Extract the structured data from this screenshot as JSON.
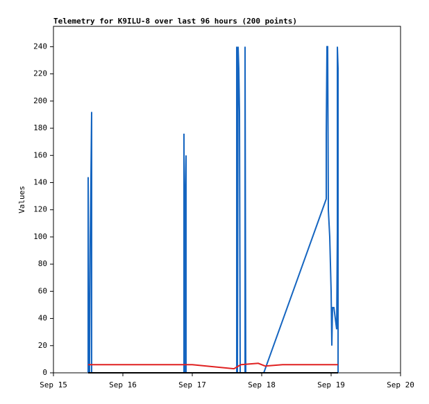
{
  "chart_data": {
    "type": "line",
    "title": "Telemetry for K9ILU-8 over last 96 hours (200 points)",
    "y_label": "Values",
    "xlim": [
      15,
      20
    ],
    "xticks": [
      {
        "value": 15,
        "label": "Sep 15"
      },
      {
        "value": 16,
        "label": "Sep 16"
      },
      {
        "value": 17,
        "label": "Sep 17"
      },
      {
        "value": 18,
        "label": "Sep 18"
      },
      {
        "value": 19,
        "label": "Sep 19"
      },
      {
        "value": 20,
        "label": "Sep 20"
      }
    ],
    "ylim": [
      0,
      255
    ],
    "yticks": [
      0,
      20,
      40,
      60,
      80,
      100,
      120,
      140,
      160,
      180,
      200,
      220,
      240
    ],
    "grid": false,
    "series": [
      {
        "color": "#1565c0",
        "x": [
          15.5,
          15.5,
          15.51,
          15.52,
          15.53,
          15.55,
          15.55,
          15.56,
          16.88,
          16.88,
          16.89,
          16.9,
          16.91,
          16.91,
          17.64,
          17.64,
          17.65,
          17.66,
          17.67,
          17.68,
          17.69,
          17.76,
          17.76,
          17.77,
          18.03,
          18.93,
          18.93,
          18.94,
          18.95,
          18.96,
          18.98,
          19.0,
          19.01,
          19.02,
          19.04,
          19.08,
          19.09,
          19.09,
          19.1,
          19.1
        ],
        "values": [
          0,
          144,
          0,
          0,
          97,
          192,
          0,
          0,
          0,
          176,
          0,
          132,
          160,
          0,
          0,
          240,
          0,
          240,
          224,
          192,
          0,
          0,
          240,
          0,
          0,
          128,
          176,
          240,
          240,
          120,
          100,
          60,
          20,
          48,
          48,
          32,
          104,
          240,
          224,
          0
        ]
      },
      {
        "color": "#e02020",
        "x": [
          15.5,
          16.9,
          17.0,
          17.6,
          17.7,
          17.95,
          18.05,
          18.3,
          19.1
        ],
        "values": [
          6,
          6,
          6,
          3,
          6,
          7,
          5,
          6,
          6
        ]
      },
      {
        "color": "#000000",
        "x": [
          15.5,
          19.1
        ],
        "values": [
          0,
          0
        ]
      }
    ]
  }
}
